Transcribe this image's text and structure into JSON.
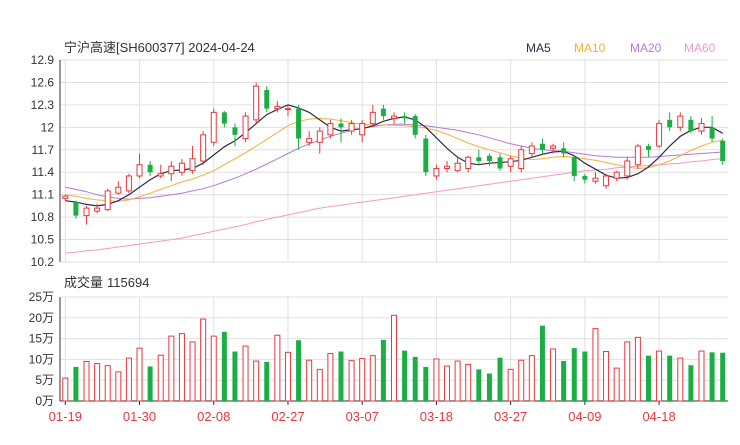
{
  "header": {
    "title": "宁沪高速[SH600377] 2024-04-24"
  },
  "colors": {
    "up": "#e8393d",
    "down": "#1cad45",
    "ma5": "#2b2f45",
    "ma10": "#f5b035",
    "ma20": "#b579d9",
    "ma60": "#f49ac8",
    "grid": "#e0e0e0",
    "axis": "#333333",
    "date": "#e8393d"
  },
  "chart_data": [
    {
      "type": "candlestick",
      "title": "宁沪高速[SH600377] 2024-04-24",
      "legend": [
        {
          "name": "MA5",
          "color": "#2b2f45"
        },
        {
          "name": "MA10",
          "color": "#f5b035"
        },
        {
          "name": "MA20",
          "color": "#b579d9"
        },
        {
          "name": "MA60",
          "color": "#f49ac8"
        }
      ],
      "legend_position": "top-right",
      "y_ticks": [
        "12.9",
        "12.6",
        "12.3",
        "12",
        "11.7",
        "11.4",
        "11.1",
        "10.8",
        "10.5",
        "10.2"
      ],
      "ylim": [
        10.2,
        12.9
      ],
      "x_labels": [
        "01-19",
        "01-30",
        "02-08",
        "02-27",
        "03-07",
        "03-18",
        "03-27",
        "04-09",
        "04-18"
      ],
      "x_label_index": [
        0,
        7,
        14,
        21,
        28,
        35,
        42,
        49,
        56
      ],
      "ohlc": [
        [
          11.05,
          11.08,
          11.02,
          11.1
        ],
        [
          11.0,
          10.82,
          10.78,
          11.02
        ],
        [
          10.82,
          10.92,
          10.7,
          10.95
        ],
        [
          10.88,
          10.92,
          10.85,
          10.98
        ],
        [
          10.9,
          11.15,
          10.88,
          11.18
        ],
        [
          11.12,
          11.2,
          11.1,
          11.28
        ],
        [
          11.15,
          11.35,
          11.12,
          11.38
        ],
        [
          11.35,
          11.5,
          11.32,
          11.65
        ],
        [
          11.5,
          11.4,
          11.35,
          11.55
        ],
        [
          11.35,
          11.38,
          11.32,
          11.5
        ],
        [
          11.38,
          11.48,
          11.28,
          11.55
        ],
        [
          11.4,
          11.52,
          11.35,
          11.58
        ],
        [
          11.42,
          11.58,
          11.38,
          11.75
        ],
        [
          11.55,
          11.9,
          11.5,
          11.95
        ],
        [
          11.8,
          12.2,
          11.75,
          12.25
        ],
        [
          12.2,
          12.05,
          12.0,
          12.22
        ],
        [
          12.0,
          11.9,
          11.75,
          12.05
        ],
        [
          11.85,
          12.15,
          11.8,
          12.2
        ],
        [
          12.1,
          12.55,
          12.05,
          12.6
        ],
        [
          12.5,
          12.25,
          12.2,
          12.55
        ],
        [
          12.25,
          12.28,
          12.2,
          12.35
        ],
        [
          12.25,
          12.25,
          12.15,
          12.3
        ],
        [
          12.25,
          11.85,
          11.7,
          12.3
        ],
        [
          11.8,
          11.85,
          11.75,
          11.95
        ],
        [
          11.8,
          11.95,
          11.65,
          12.0
        ],
        [
          11.9,
          12.05,
          11.85,
          12.1
        ],
        [
          12.05,
          12.0,
          11.8,
          12.12
        ],
        [
          11.95,
          12.05,
          11.9,
          12.1
        ],
        [
          11.9,
          12.05,
          11.8,
          12.1
        ],
        [
          12.05,
          12.2,
          12.0,
          12.3
        ],
        [
          12.25,
          12.15,
          12.1,
          12.3
        ],
        [
          12.12,
          12.15,
          12.05,
          12.2
        ],
        [
          12.15,
          12.12,
          12.05,
          12.2
        ],
        [
          12.15,
          11.9,
          11.85,
          12.18
        ],
        [
          11.85,
          11.4,
          11.35,
          11.9
        ],
        [
          11.35,
          11.45,
          11.3,
          11.5
        ],
        [
          11.45,
          11.48,
          11.4,
          11.55
        ],
        [
          11.42,
          11.52,
          11.4,
          11.62
        ],
        [
          11.45,
          11.6,
          11.4,
          11.62
        ],
        [
          11.6,
          11.55,
          11.5,
          11.7
        ],
        [
          11.62,
          11.55,
          11.48,
          11.65
        ],
        [
          11.6,
          11.45,
          11.42,
          11.65
        ],
        [
          11.48,
          11.58,
          11.4,
          11.62
        ],
        [
          11.45,
          11.7,
          11.4,
          11.75
        ],
        [
          11.65,
          11.75,
          11.6,
          11.8
        ],
        [
          11.78,
          11.7,
          11.65,
          11.85
        ],
        [
          11.72,
          11.75,
          11.65,
          11.78
        ],
        [
          11.72,
          11.65,
          11.6,
          11.8
        ],
        [
          11.6,
          11.35,
          11.28,
          11.62
        ],
        [
          11.35,
          11.3,
          11.25,
          11.38
        ],
        [
          11.28,
          11.32,
          11.25,
          11.4
        ],
        [
          11.22,
          11.35,
          11.18,
          11.38
        ],
        [
          11.32,
          11.4,
          11.28,
          11.42
        ],
        [
          11.35,
          11.55,
          11.3,
          11.6
        ],
        [
          11.5,
          11.75,
          11.45,
          11.78
        ],
        [
          11.75,
          11.7,
          11.6,
          11.78
        ],
        [
          11.75,
          12.05,
          11.72,
          12.1
        ],
        [
          12.1,
          12.0,
          11.95,
          12.2
        ],
        [
          12.0,
          12.15,
          11.95,
          12.2
        ],
        [
          12.1,
          11.95,
          11.92,
          12.15
        ],
        [
          11.95,
          12.05,
          11.9,
          12.12
        ],
        [
          12.0,
          11.85,
          11.8,
          12.15
        ],
        [
          11.82,
          11.55,
          11.5,
          11.85
        ]
      ],
      "ma": {
        "MA5": [
          11.02,
          11.0,
          10.97,
          10.95,
          10.97,
          11.02,
          11.1,
          11.2,
          11.3,
          11.38,
          11.42,
          11.43,
          11.45,
          11.52,
          11.63,
          11.74,
          11.82,
          11.93,
          12.05,
          12.17,
          12.24,
          12.3,
          12.26,
          12.2,
          12.1,
          12.0,
          11.95,
          11.97,
          11.98,
          12.02,
          12.08,
          12.12,
          12.14,
          12.1,
          12.0,
          11.86,
          11.72,
          11.6,
          11.52,
          11.5,
          11.52,
          11.53,
          11.54,
          11.56,
          11.6,
          11.64,
          11.67,
          11.68,
          11.62,
          11.52,
          11.44,
          11.36,
          11.32,
          11.33,
          11.38,
          11.47,
          11.6,
          11.75,
          11.88,
          11.96,
          12.0,
          12.0,
          11.92
        ],
        "MA10": [
          11.1,
          11.08,
          11.05,
          11.03,
          11.02,
          11.01,
          11.03,
          11.07,
          11.12,
          11.17,
          11.22,
          11.27,
          11.31,
          11.36,
          11.42,
          11.5,
          11.58,
          11.66,
          11.75,
          11.84,
          11.93,
          12.02,
          12.08,
          12.11,
          12.12,
          12.11,
          12.09,
          12.06,
          12.04,
          12.03,
          12.03,
          12.03,
          12.02,
          12.01,
          11.99,
          11.96,
          11.91,
          11.85,
          11.79,
          11.74,
          11.7,
          11.66,
          11.62,
          11.59,
          11.57,
          11.58,
          11.6,
          11.61,
          11.6,
          11.58,
          11.56,
          11.53,
          11.5,
          11.47,
          11.45,
          11.46,
          11.5,
          11.55,
          11.62,
          11.69,
          11.75,
          11.8,
          11.83
        ],
        "MA20": [
          11.2,
          11.17,
          11.14,
          11.1,
          11.07,
          11.05,
          11.04,
          11.05,
          11.06,
          11.08,
          11.1,
          11.12,
          11.15,
          11.18,
          11.22,
          11.27,
          11.32,
          11.38,
          11.44,
          11.51,
          11.58,
          11.65,
          11.72,
          11.78,
          11.83,
          11.88,
          11.92,
          11.96,
          11.99,
          12.01,
          12.03,
          12.04,
          12.04,
          12.03,
          12.02,
          12.0,
          11.98,
          11.96,
          11.93,
          11.9,
          11.86,
          11.82,
          11.78,
          11.75,
          11.72,
          11.7,
          11.69,
          11.68,
          11.66,
          11.64,
          11.62,
          11.61,
          11.6,
          11.6,
          11.6,
          11.6,
          11.61,
          11.62,
          11.63,
          11.64,
          11.65,
          11.66,
          11.67
        ],
        "MA60": [
          10.32,
          10.33,
          10.35,
          10.36,
          10.38,
          10.4,
          10.42,
          10.44,
          10.46,
          10.48,
          10.5,
          10.52,
          10.55,
          10.58,
          10.61,
          10.64,
          10.67,
          10.7,
          10.74,
          10.77,
          10.8,
          10.83,
          10.86,
          10.89,
          10.92,
          10.94,
          10.96,
          10.98,
          11.0,
          11.02,
          11.04,
          11.06,
          11.08,
          11.1,
          11.12,
          11.14,
          11.16,
          11.18,
          11.2,
          11.22,
          11.24,
          11.26,
          11.28,
          11.3,
          11.32,
          11.34,
          11.36,
          11.38,
          11.4,
          11.42,
          11.43,
          11.44,
          11.46,
          11.47,
          11.48,
          11.49,
          11.5,
          11.51,
          11.52,
          11.54,
          11.55,
          11.57,
          11.58
        ]
      }
    },
    {
      "type": "bar",
      "title": "成交量 115694",
      "volume_label": "成交量",
      "volume_value": "115694",
      "unit": "万",
      "y_ticks": [
        "25万",
        "20万",
        "15万",
        "10万",
        "5万",
        "0万"
      ],
      "ylim": [
        0,
        25
      ],
      "volumes": [
        5.5,
        8.2,
        9.5,
        9.0,
        8.5,
        7.0,
        10.3,
        12.7,
        8.3,
        11.0,
        15.6,
        16.2,
        14.2,
        19.7,
        15.6,
        16.6,
        11.9,
        13.2,
        9.6,
        9.4,
        15.8,
        11.7,
        14.6,
        9.8,
        7.6,
        11.4,
        11.9,
        9.7,
        10.2,
        10.9,
        14.7,
        20.6,
        12.1,
        10.6,
        8.2,
        10.1,
        8.4,
        9.6,
        8.8,
        7.6,
        6.6,
        10.4,
        7.6,
        9.8,
        10.9,
        18.1,
        12.5,
        9.6,
        12.7,
        11.9,
        17.4,
        11.9,
        7.9,
        14.2,
        15.3,
        10.9,
        12.0,
        10.9,
        10.3,
        8.6,
        12.0,
        11.7,
        11.6
      ]
    }
  ]
}
